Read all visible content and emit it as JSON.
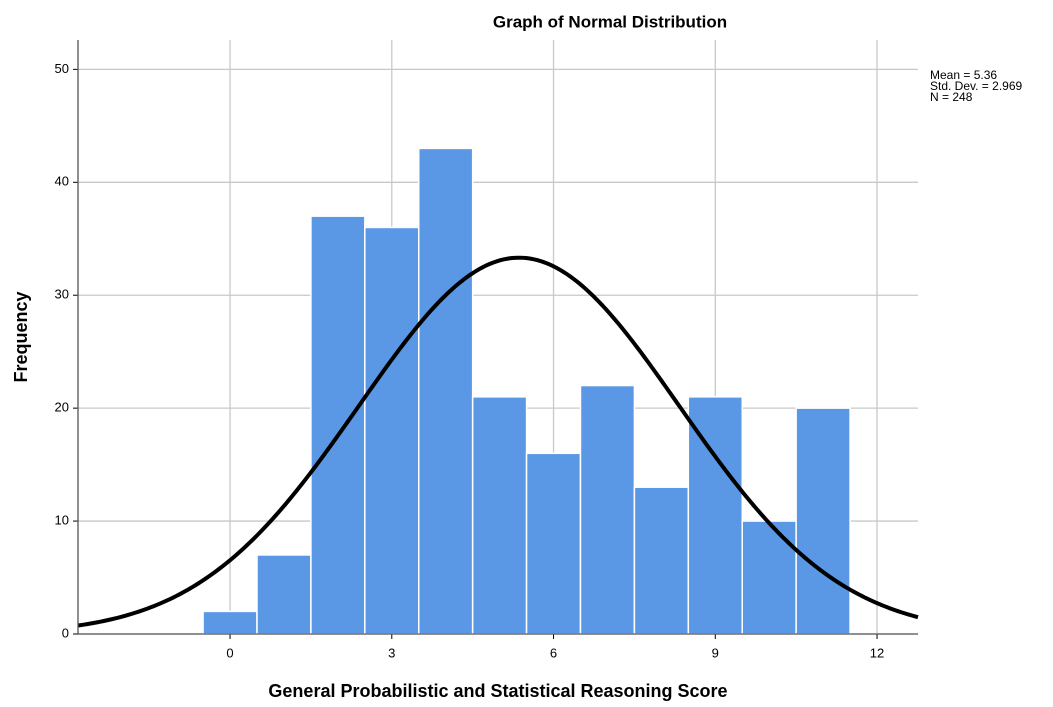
{
  "chart_data": {
    "type": "histogram",
    "title": "Graph of Normal Distribution",
    "x_label": "General Probabilistic and Statistical Reasoning Score",
    "y_label": "Frequency",
    "bins": [
      -0.5,
      0.5,
      1.5,
      2.5,
      3.5,
      4.5,
      5.5,
      6.5,
      7.5,
      8.5,
      9.5,
      10.5,
      11.5
    ],
    "values": [
      2,
      7,
      37,
      36,
      43,
      21,
      16,
      22,
      13,
      21,
      10,
      20
    ],
    "color": "#5a97e5",
    "xlim": [
      -2.82,
      12.76
    ],
    "xticks": [
      0,
      3,
      6,
      9,
      12
    ],
    "ylim": [
      0,
      52.6
    ],
    "yticks": [
      0,
      10,
      20,
      30,
      40,
      50
    ],
    "grid": true,
    "normal_curve": {
      "color": "#000000",
      "mean": {
        "value": 5.36,
        "label": "Mean = 5.36"
      },
      "std": {
        "value": 2.969,
        "label": "Std. Dev. = 2.969"
      },
      "n": {
        "value": 248,
        "label": "N = 248"
      }
    }
  }
}
